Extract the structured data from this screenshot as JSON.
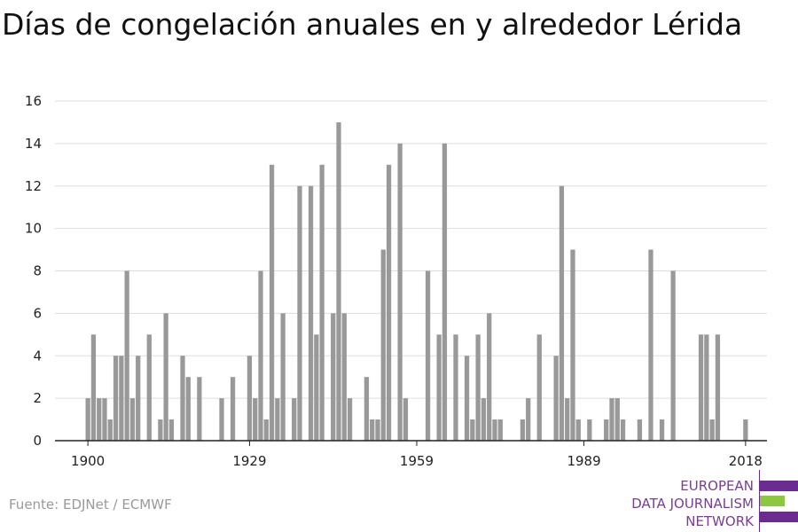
{
  "chart_data": {
    "type": "bar",
    "title": "Días de congelación anuales en y alrededor Lérida",
    "xlabel": "",
    "ylabel": "",
    "ylim": [
      0,
      16
    ],
    "xlim": [
      1899.5,
      2018.5
    ],
    "yticks": [
      0,
      2,
      4,
      6,
      8,
      10,
      12,
      14,
      16
    ],
    "xticks": [
      1900,
      1929,
      1959,
      1989,
      2018
    ],
    "grid": true,
    "colors": {
      "bars": "#999999",
      "grid": "#dddddd",
      "axis": "#222222"
    },
    "x": [
      1900,
      1901,
      1902,
      1903,
      1904,
      1905,
      1906,
      1907,
      1908,
      1909,
      1910,
      1911,
      1912,
      1913,
      1914,
      1915,
      1916,
      1917,
      1918,
      1919,
      1920,
      1921,
      1922,
      1923,
      1924,
      1925,
      1926,
      1927,
      1928,
      1929,
      1930,
      1931,
      1932,
      1933,
      1934,
      1935,
      1936,
      1937,
      1938,
      1939,
      1940,
      1941,
      1942,
      1943,
      1944,
      1945,
      1946,
      1947,
      1948,
      1949,
      1950,
      1951,
      1952,
      1953,
      1954,
      1955,
      1956,
      1957,
      1958,
      1959,
      1960,
      1961,
      1962,
      1963,
      1964,
      1965,
      1966,
      1967,
      1968,
      1969,
      1970,
      1971,
      1972,
      1973,
      1974,
      1975,
      1976,
      1977,
      1978,
      1979,
      1980,
      1981,
      1982,
      1983,
      1984,
      1985,
      1986,
      1987,
      1988,
      1989,
      1990,
      1991,
      1992,
      1993,
      1994,
      1995,
      1996,
      1997,
      1998,
      1999,
      2000,
      2001,
      2002,
      2003,
      2004,
      2005,
      2006,
      2007,
      2008,
      2009,
      2010,
      2011,
      2012,
      2013,
      2014,
      2015,
      2016,
      2017,
      2018
    ],
    "values": [
      2,
      5,
      2,
      2,
      1,
      4,
      4,
      8,
      2,
      4,
      0,
      5,
      0,
      1,
      6,
      1,
      0,
      4,
      3,
      0,
      3,
      0,
      0,
      0,
      2,
      0,
      3,
      0,
      0,
      4,
      2,
      8,
      1,
      13,
      2,
      6,
      0,
      2,
      12,
      0,
      12,
      5,
      13,
      0,
      6,
      15,
      6,
      2,
      0,
      0,
      3,
      1,
      1,
      9,
      13,
      0,
      14,
      2,
      0,
      0,
      0,
      8,
      0,
      5,
      14,
      0,
      5,
      0,
      4,
      1,
      5,
      2,
      6,
      1,
      1,
      0,
      0,
      0,
      1,
      2,
      0,
      5,
      0,
      0,
      4,
      12,
      2,
      9,
      1,
      0,
      1,
      0,
      0,
      1,
      2,
      2,
      1,
      0,
      0,
      1,
      0,
      9,
      0,
      1,
      0,
      8,
      0,
      0,
      0,
      0,
      5,
      5,
      1,
      5,
      0,
      0,
      0,
      0,
      1
    ]
  },
  "footer": {
    "source": "Fuente: EDJNet / ECMWF"
  },
  "logo": {
    "lines": [
      "EUROPEAN",
      "DATA JOURNALISM",
      "NETWORK"
    ],
    "colors": {
      "text": "#7a3d96",
      "bar_purple": "#6b2c91",
      "bar_green": "#8dc63f"
    }
  }
}
